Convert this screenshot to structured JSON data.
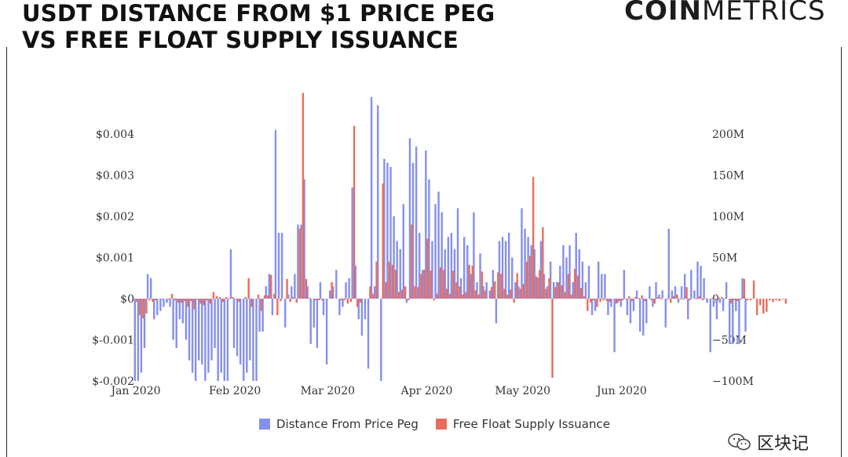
{
  "title_line1": "USDT DISTANCE FROM $1 PRICE PEG",
  "title_line2": "VS FREE FLOAT SUPPLY ISSUANCE",
  "brand": {
    "part1": "COIN",
    "part2": "METRICS"
  },
  "watermark": {
    "text": "区块记",
    "icon": "wechat-icon"
  },
  "colors": {
    "peg": "#8590ec",
    "supply": "#ea6d5c"
  },
  "chart_data": {
    "type": "bar",
    "x_start": "2020-01-01",
    "x_end": "2020-06-30",
    "x_tick_labels": [
      "Jan 2020",
      "Feb 2020",
      "Mar 2020",
      "Apr 2020",
      "May 2020",
      "Jun 2020"
    ],
    "x_tick_dates": [
      "2020-01-01",
      "2020-02-01",
      "2020-03-01",
      "2020-04-01",
      "2020-05-01",
      "2020-06-01"
    ],
    "y_left": {
      "range": [
        -0.002,
        0.005
      ],
      "ticks": [
        -0.002,
        -0.001,
        0,
        0.001,
        0.002,
        0.003,
        0.004
      ],
      "tick_labels": [
        "$-0.002",
        "$-0.001",
        "$0",
        "$0.001",
        "$0.002",
        "$0.003",
        "$0.004"
      ]
    },
    "y_right": {
      "range": [
        -100,
        250
      ],
      "ticks": [
        -100,
        -50,
        0,
        50,
        100,
        150,
        200
      ],
      "tick_labels": [
        "−100M",
        "−50M",
        "0",
        "50M",
        "100M",
        "150M",
        "200M"
      ]
    },
    "legend_position": "bottom",
    "series": [
      {
        "name": "Distance From Price Peg",
        "axis": "left",
        "start_date": "2020-01-01",
        "values": [
          -0.002,
          -0.002,
          -0.0018,
          -0.0012,
          0.0006,
          0.0005,
          -0.0005,
          -0.0004,
          -0.0003,
          -0.0002,
          -0.0001,
          -0.0002,
          -0.001,
          -0.0012,
          -0.0005,
          -0.0006,
          -0.001,
          -0.0015,
          -0.0018,
          -0.002,
          -0.0015,
          -0.0016,
          -0.002,
          -0.0018,
          -0.0015,
          -0.0012,
          -0.002,
          -0.0018,
          -0.002,
          -0.002,
          0.0012,
          -0.0012,
          -0.0014,
          -0.0016,
          -0.002,
          -0.0018,
          -0.0015,
          -0.002,
          -0.002,
          -0.0008,
          -0.0008,
          0.0003,
          0.0006,
          -0.0004,
          0.0041,
          0.0016,
          0.0016,
          -0.0007,
          0.0001,
          0.0003,
          0.0006,
          0.0018,
          0.0018,
          0.0029,
          0.0003,
          -0.0011,
          -0.0007,
          -0.0012,
          0.0004,
          -0.0004,
          -0.0016,
          0.0002,
          0.0003,
          0.0007,
          -0.0004,
          -0.0002,
          0.0004,
          0.0005,
          0.0027,
          0.0008,
          -0.0005,
          -0.0009,
          -0.0005,
          -0.0017,
          0.0049,
          0.0003,
          0.0047,
          -0.002,
          0.0034,
          0.0033,
          0.0032,
          0.002,
          0.0014,
          0.0012,
          0.0023,
          -0.0001,
          0.0039,
          0.0033,
          0.0037,
          0.0016,
          0.0007,
          0.0036,
          0.0029,
          0.0014,
          0.0023,
          0.0026,
          0.0021,
          0.0012,
          0.0015,
          0.0016,
          0.0012,
          0.0022,
          0.0005,
          0.0015,
          0.0013,
          0.0006,
          0.0021,
          0.0004,
          0.0011,
          0.0003,
          0.0004,
          0.0002,
          0.0007,
          -0.0006,
          0.0014,
          0.0015,
          0.0014,
          0.0016,
          0.001,
          0.0004,
          0.0003,
          0.0022,
          0.0017,
          0.0015,
          0.0013,
          0.0012,
          0.0005,
          0.0014,
          0.0006,
          0.0003,
          0.0009,
          0.0004,
          0.0004,
          0.0008,
          0.0013,
          0.001,
          0.0013,
          0.0004,
          0.0016,
          0.0012,
          0.0009,
          0.0004,
          0.0008,
          -0.0004,
          -0.0003,
          0.0009,
          0.0006,
          0.0006,
          -0.0004,
          -0.0002,
          -0.0013,
          -0.0001,
          -0.0002,
          0.0007,
          -0.0004,
          -0.0006,
          -0.0003,
          0.0002,
          -0.0008,
          -0.0009,
          -0.0006,
          0.0003,
          -0.0002,
          0.0004,
          0.0001,
          0.0002,
          -0.0007,
          0.0017,
          0.0002,
          0.0003,
          -0.0001,
          0.0003,
          0.0006,
          -0.0005,
          0.0007,
          0.0002,
          0.0009,
          0.0008,
          0.0005,
          -0.0001,
          -0.0013,
          -0.0002,
          -0.0005,
          -0.0001,
          -0.0003,
          0.0004,
          -0.0011,
          -0.0011,
          -0.0003,
          -0.0011,
          0.0005,
          -0.0008
        ]
      },
      {
        "name": "Free Float Supply Issuance",
        "axis": "right",
        "start_date": "2020-01-01",
        "values": [
          -4,
          -20,
          -24,
          -18,
          -2,
          -4,
          -2,
          0,
          -1,
          0,
          -1,
          6,
          -2,
          -5,
          -5,
          -3,
          -10,
          -3,
          -13,
          -1,
          -6,
          -8,
          -2,
          -6,
          8,
          3,
          2,
          -4,
          2,
          1,
          2,
          -1,
          -4,
          0,
          2,
          25,
          -10,
          0,
          5,
          -15,
          4,
          4,
          29,
          6,
          -20,
          -3,
          0,
          24,
          -4,
          2,
          -5,
          85,
          250,
          24,
          1,
          0,
          -2,
          -2,
          -2,
          0,
          0,
          20,
          0,
          0,
          -2,
          -2,
          -6,
          -4,
          210,
          -10,
          -5,
          0,
          0,
          15,
          6,
          45,
          0,
          140,
          20,
          45,
          41,
          35,
          8,
          11,
          15,
          -2,
          90,
          15,
          14,
          30,
          35,
          73,
          34,
          -2,
          6,
          38,
          35,
          12,
          6,
          34,
          20,
          15,
          5,
          8,
          41,
          40,
          10,
          5,
          33,
          10,
          0,
          14,
          21,
          32,
          30,
          12,
          5,
          11,
          -5,
          31,
          12,
          18,
          45,
          52,
          148,
          27,
          35,
          87,
          12,
          25,
          -96,
          14,
          20,
          16,
          8,
          30,
          5,
          36,
          28,
          13,
          3,
          -15,
          -5,
          -2,
          -10,
          -4,
          -2,
          -3,
          -4,
          0,
          -6,
          -3,
          -2,
          -1,
          3,
          -3,
          2,
          1,
          4,
          -3,
          0,
          -2,
          -6,
          2,
          -1,
          0,
          -1,
          -5,
          3,
          5,
          -1,
          -1,
          14,
          -2,
          0,
          -1,
          3,
          -2,
          -1,
          0,
          1,
          -2,
          2,
          2,
          1,
          0,
          -6,
          -2,
          -3,
          -1,
          24,
          -2,
          -2,
          22,
          -20,
          -8,
          -18,
          -16,
          -2,
          -4,
          -2,
          -3,
          -1,
          -6
        ]
      }
    ]
  }
}
